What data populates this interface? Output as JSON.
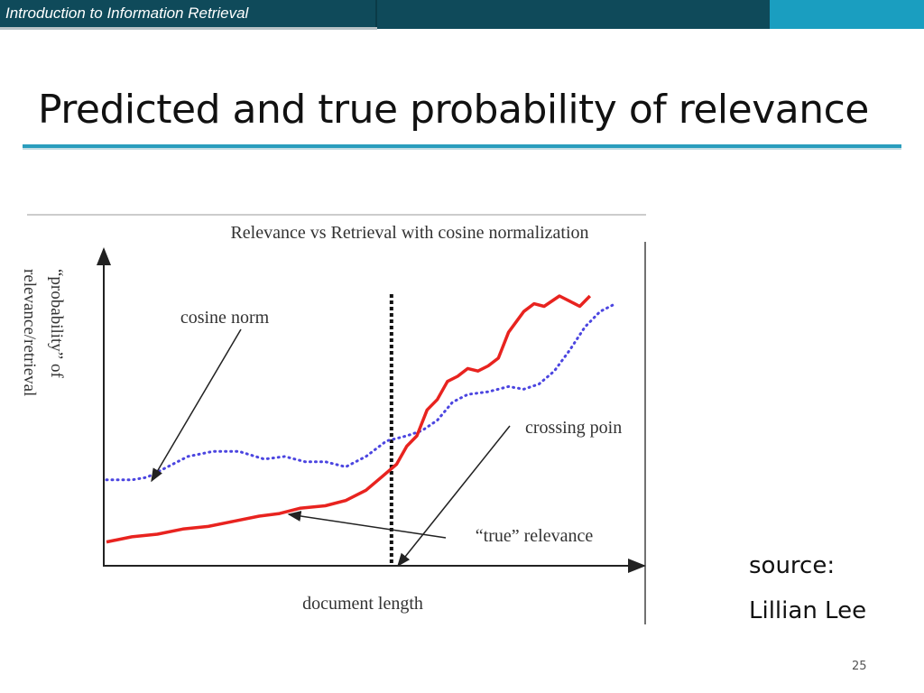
{
  "header": {
    "course_title": "Introduction to Information Retrieval"
  },
  "slide": {
    "title": "Predicted and true probability of relevance",
    "source_label": "source:",
    "source_name": "Lillian Lee",
    "page_number": "25"
  },
  "colors": {
    "header_dark": "#0f4a5a",
    "header_light": "#1a9ec0",
    "accent_rule": "#2a9dbd",
    "true_relevance": "#e8231f",
    "cosine_norm": "#4b45e0"
  },
  "chart_data": {
    "type": "line",
    "title": "Relevance vs Retrieval with cosine normalization",
    "xlabel": "document length",
    "ylabel_line1": "“probability” of",
    "ylabel_line2": "relevance/retrieval",
    "xlim": [
      0,
      100
    ],
    "ylim": [
      0,
      100
    ],
    "grid": false,
    "axis_ticks": false,
    "series": [
      {
        "name": "cosine norm",
        "style": "dotted",
        "color": "#4b45e0",
        "x": [
          0,
          5,
          8,
          12,
          16,
          21,
          26,
          31,
          35,
          39,
          43,
          47,
          51,
          55,
          59,
          62,
          65,
          68,
          71,
          75,
          79,
          82,
          85,
          88,
          91,
          94,
          97,
          100
        ],
        "y": [
          29,
          29,
          30,
          34,
          38,
          40,
          40,
          37,
          38,
          36,
          36,
          34,
          38,
          44,
          46,
          48,
          52,
          59,
          62,
          63,
          65,
          64,
          66,
          71,
          79,
          88,
          94,
          97
        ]
      },
      {
        "name": "“true” relevance",
        "style": "solid",
        "color": "#e8231f",
        "x": [
          0,
          5,
          10,
          15,
          20,
          25,
          30,
          34,
          38,
          43,
          47,
          51,
          54,
          57,
          59,
          61,
          63,
          65,
          67,
          69,
          71,
          73,
          75,
          77,
          79,
          82,
          84,
          86,
          89,
          91,
          93,
          95
        ],
        "y": [
          5,
          7,
          8,
          10,
          11,
          13,
          15,
          16,
          18,
          19,
          21,
          25,
          30,
          35,
          42,
          46,
          56,
          60,
          67,
          69,
          72,
          71,
          73,
          76,
          86,
          94,
          97,
          96,
          100,
          98,
          96,
          100
        ]
      }
    ],
    "vertical_marker": {
      "x": 56,
      "label": "crossing point",
      "visible_label": "crossing poin"
    },
    "annotations": [
      {
        "text": "cosine norm",
        "points_to": "cosine norm"
      },
      {
        "text": "“true” relevance",
        "points_to": "“true” relevance"
      },
      {
        "text": "crossing poin",
        "points_to": "crossing point"
      }
    ]
  }
}
